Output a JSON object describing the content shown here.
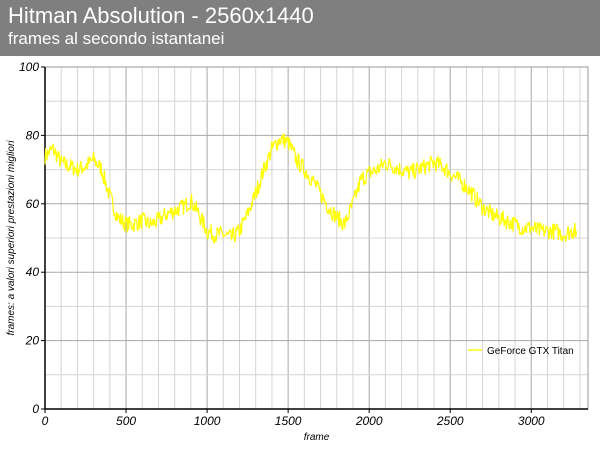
{
  "chart_data": {
    "type": "line",
    "title": "Hitman Absolution - 2560x1440",
    "subtitle": "frames al secondo istantanei",
    "xlabel": "frame",
    "ylabel": "frames: a valori superiori prestazioni migliori",
    "xlim": [
      0,
      3350
    ],
    "ylim": [
      0,
      100
    ],
    "xticks": [
      0,
      500,
      1000,
      1500,
      2000,
      2500,
      3000
    ],
    "yticks": [
      0,
      20,
      40,
      60,
      80,
      100
    ],
    "grid": true,
    "legend_position": "right",
    "series": [
      {
        "name": "GeForce GTX Titan",
        "color": "#ffff00",
        "x": [
          0,
          50,
          100,
          150,
          200,
          250,
          300,
          350,
          400,
          450,
          500,
          550,
          600,
          650,
          700,
          750,
          800,
          850,
          900,
          950,
          1000,
          1050,
          1100,
          1150,
          1200,
          1250,
          1300,
          1350,
          1400,
          1450,
          1500,
          1550,
          1600,
          1650,
          1700,
          1750,
          1800,
          1850,
          1900,
          1950,
          2000,
          2050,
          2100,
          2150,
          2200,
          2250,
          2300,
          2350,
          2400,
          2450,
          2500,
          2550,
          2600,
          2650,
          2700,
          2750,
          2800,
          2850,
          2900,
          2950,
          3000,
          3050,
          3100,
          3150,
          3200,
          3250,
          3280
        ],
        "y": [
          74,
          76,
          72,
          71,
          70,
          71,
          73,
          70,
          62,
          56,
          54,
          54,
          55,
          54,
          55,
          57,
          58,
          59,
          61,
          57,
          52,
          51,
          51,
          50,
          52,
          57,
          63,
          70,
          76,
          79,
          78,
          73,
          70,
          67,
          63,
          59,
          56,
          54,
          60,
          67,
          69,
          70,
          72,
          71,
          70,
          69,
          70,
          71,
          72,
          71,
          69,
          67,
          65,
          62,
          59,
          57,
          56,
          55,
          54,
          53,
          53,
          52,
          52,
          52,
          51,
          52,
          52
        ]
      }
    ]
  }
}
